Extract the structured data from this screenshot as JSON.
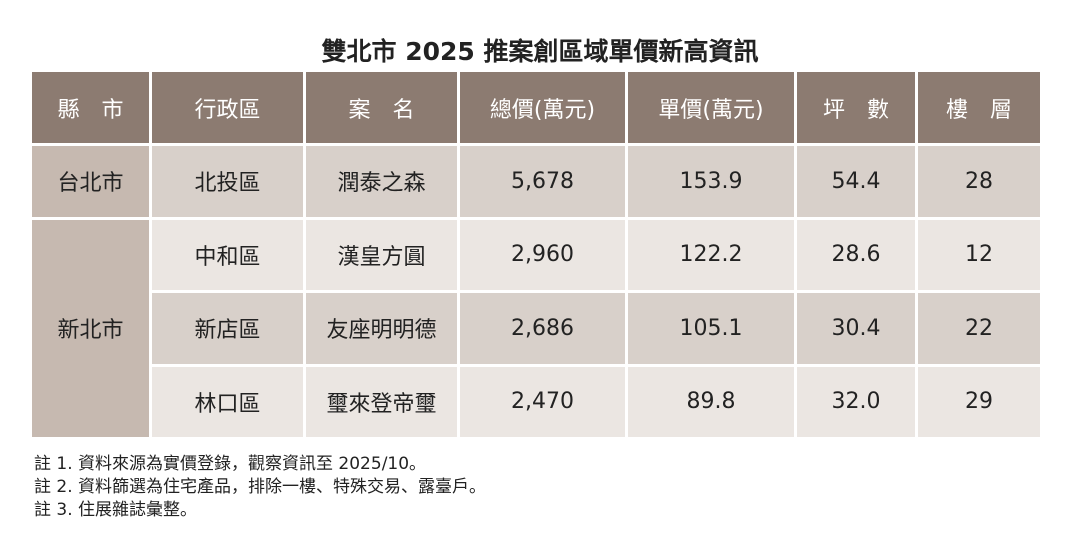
{
  "title": "雙北市 2025 推案創區域單價新高資訊",
  "table": {
    "header": [
      "縣　市",
      "行政區",
      "案　名",
      "總價(萬元)",
      "單價(萬元)",
      "坪　數",
      "樓　層"
    ],
    "groups": [
      {
        "county": "台北市",
        "rows": [
          [
            "北投區",
            "潤泰之森",
            "5,678",
            "153.9",
            "54.4",
            "28"
          ]
        ]
      },
      {
        "county": "新北市",
        "rows": [
          [
            "中和區",
            "漢皇方圓",
            "2,960",
            "122.2",
            "28.6",
            "12"
          ],
          [
            "新店區",
            "友座明明德",
            "2,686",
            "105.1",
            "30.4",
            "22"
          ],
          [
            "林口區",
            "璽來登帝璽",
            "2,470",
            "89.8",
            "32.0",
            "29"
          ]
        ]
      }
    ]
  },
  "notes": [
    "註 1. 資料來源為實價登錄，觀察資訊至 2025/10。",
    "註 2. 資料篩選為住宅產品，排除一樓、特殊交易、露臺戶。",
    "註 3. 住展雜誌彙整。"
  ]
}
